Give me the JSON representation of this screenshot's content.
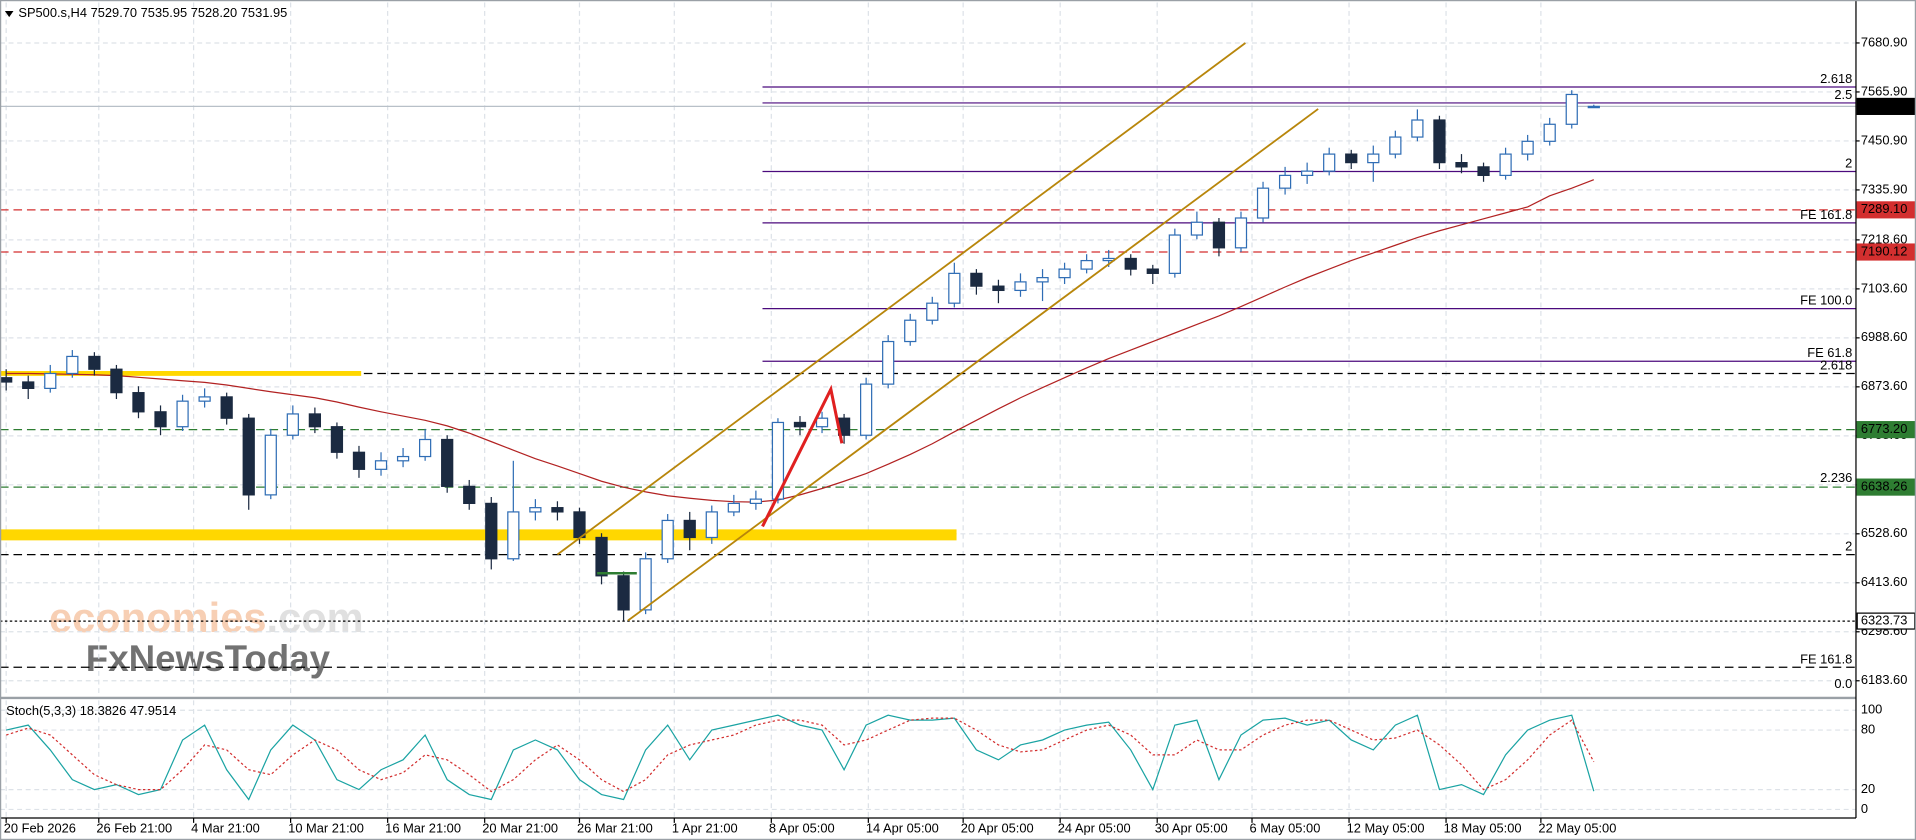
{
  "chart_data": [
    {
      "type": "candlestick",
      "title": "SP500.s,H4  7529.70 7535.95 7528.20 7531.95",
      "open": [
        6895,
        6885,
        6870,
        6905,
        6945,
        6915,
        6860,
        6815,
        6780,
        6840,
        6850,
        6800,
        6620,
        6760,
        6810,
        6780,
        6720,
        6680,
        6700,
        6710,
        6750,
        6640,
        6600,
        6470,
        6580,
        6590,
        6580,
        6520,
        6430,
        6350,
        6470,
        6560,
        6520,
        6580,
        6600,
        6610,
        6790,
        6780,
        6800,
        6760,
        6880,
        6980,
        7030,
        7070,
        7140,
        7110,
        7100,
        7120,
        7130,
        7150,
        7170,
        7175,
        7150,
        7140,
        7230,
        7260,
        7200,
        7270,
        7340,
        7370,
        7380,
        7420,
        7400,
        7420,
        7460,
        7500,
        7400,
        7390,
        7370,
        7420,
        7450,
        7490,
        7529.7
      ],
      "high": [
        6915,
        6900,
        6925,
        6960,
        6955,
        6925,
        6875,
        6830,
        6855,
        6870,
        6860,
        6810,
        6775,
        6830,
        6825,
        6790,
        6735,
        6720,
        6730,
        6775,
        6760,
        6655,
        6615,
        6700,
        6610,
        6605,
        6590,
        6530,
        6440,
        6485,
        6575,
        6580,
        6595,
        6620,
        6630,
        6800,
        6805,
        6815,
        6810,
        6895,
        6995,
        7045,
        7085,
        7165,
        7150,
        7125,
        7140,
        7150,
        7165,
        7185,
        7195,
        7185,
        7160,
        7245,
        7285,
        7270,
        7285,
        7355,
        7390,
        7400,
        7435,
        7430,
        7440,
        7475,
        7525,
        7510,
        7420,
        7400,
        7435,
        7465,
        7505,
        7570,
        7535.95
      ],
      "low": [
        6865,
        6845,
        6860,
        6895,
        6900,
        6845,
        6800,
        6760,
        6770,
        6825,
        6785,
        6585,
        6610,
        6750,
        6765,
        6705,
        6660,
        6665,
        6685,
        6700,
        6625,
        6585,
        6445,
        6465,
        6560,
        6560,
        6505,
        6410,
        6325,
        6340,
        6460,
        6490,
        6505,
        6570,
        6585,
        6600,
        6760,
        6765,
        6740,
        6750,
        6870,
        6970,
        7020,
        7060,
        7090,
        7070,
        7085,
        7075,
        7115,
        7140,
        7155,
        7135,
        7115,
        7130,
        7220,
        7180,
        7190,
        7260,
        7325,
        7350,
        7370,
        7385,
        7355,
        7410,
        7450,
        7385,
        7375,
        7355,
        7360,
        7405,
        7440,
        7480,
        7528.2
      ],
      "close": [
        6885,
        6870,
        6905,
        6945,
        6915,
        6860,
        6815,
        6780,
        6840,
        6850,
        6800,
        6620,
        6760,
        6810,
        6780,
        6720,
        6680,
        6700,
        6710,
        6750,
        6640,
        6600,
        6470,
        6580,
        6590,
        6580,
        6520,
        6430,
        6350,
        6470,
        6560,
        6520,
        6580,
        6600,
        6610,
        6790,
        6780,
        6800,
        6760,
        6880,
        6980,
        7030,
        7070,
        7140,
        7110,
        7100,
        7120,
        7130,
        7150,
        7170,
        7175,
        7150,
        7140,
        7230,
        7260,
        7200,
        7270,
        7340,
        7370,
        7380,
        7420,
        7400,
        7420,
        7460,
        7500,
        7400,
        7390,
        7370,
        7420,
        7450,
        7490,
        7560,
        7531.95
      ],
      "up_color": "#2f6db5",
      "down_color": "#1b2a41",
      "ma": {
        "color": "#b22222",
        "values": [
          6905,
          6905,
          6904,
          6903,
          6902,
          6900,
          6896,
          6892,
          6888,
          6884,
          6878,
          6870,
          6862,
          6855,
          6848,
          6838,
          6826,
          6815,
          6805,
          6795,
          6782,
          6765,
          6745,
          6725,
          6705,
          6688,
          6670,
          6652,
          6638,
          6627,
          6618,
          6612,
          6607,
          6604,
          6603,
          6608,
          6620,
          6635,
          6652,
          6670,
          6692,
          6715,
          6740,
          6768,
          6795,
          6822,
          6848,
          6872,
          6895,
          6918,
          6940,
          6960,
          6980,
          7000,
          7020,
          7040,
          7062,
          7085,
          7108,
          7130,
          7150,
          7170,
          7188,
          7206,
          7224,
          7240,
          7254,
          7268,
          7282,
          7296,
          7322,
          7340,
          7360
        ]
      },
      "xlim": [
        -0.28,
        83.89
      ],
      "xticks": [
        {
          "value": 0,
          "label": "20 Feb 2026"
        },
        {
          "value": 4.2,
          "label": "26 Feb 21:00"
        },
        {
          "value": 8.5,
          "label": "4 Mar 21:00"
        },
        {
          "value": 12.9,
          "label": "10 Mar 21:00"
        },
        {
          "value": 17.3,
          "label": "16 Mar 21:00"
        },
        {
          "value": 21.7,
          "label": "20 Mar 21:00"
        },
        {
          "value": 26,
          "label": "26 Mar 21:00"
        },
        {
          "value": 30.3,
          "label": "1 Apr 21:00"
        },
        {
          "value": 34.7,
          "label": "8 Apr 05:00"
        },
        {
          "value": 39.1,
          "label": "14 Apr 05:00"
        },
        {
          "value": 43.4,
          "label": "20 Apr 05:00"
        },
        {
          "value": 47.8,
          "label": "24 Apr 05:00"
        },
        {
          "value": 52.2,
          "label": "30 Apr 05:00"
        },
        {
          "value": 56.5,
          "label": "6 May 05:00"
        },
        {
          "value": 60.9,
          "label": "12 May 05:00"
        },
        {
          "value": 65.3,
          "label": "18 May 05:00"
        },
        {
          "value": 69.6,
          "label": "22 May 05:00"
        }
      ],
      "ylim": [
        6149,
        7776
      ],
      "yticks": [
        {
          "value": 7680.9,
          "label": "7680.90"
        },
        {
          "value": 7565.9,
          "label": "7565.90"
        },
        {
          "value": 7450.9,
          "label": "7450.90"
        },
        {
          "value": 7335.9,
          "label": "7335.90"
        },
        {
          "value": 7218.6,
          "label": "7218.60"
        },
        {
          "value": 7103.6,
          "label": "7103.60"
        },
        {
          "value": 6988.6,
          "label": "6988.60"
        },
        {
          "value": 6873.6,
          "label": "6873.60"
        },
        {
          "value": 6758.6,
          "label": "6758.60"
        },
        {
          "value": 6643.6,
          "label": "6643.60"
        },
        {
          "value": 6528.6,
          "label": "6528.60"
        },
        {
          "value": 6413.6,
          "label": "6413.60"
        },
        {
          "value": 6298.6,
          "label": "6298.60"
        },
        {
          "value": 6183.6,
          "label": "6183.60"
        }
      ],
      "grid": true,
      "levels": [
        {
          "value": 7577.5,
          "name": "2.618",
          "color": "#4b0a7d",
          "style": "solid",
          "x_start": 34.3
        },
        {
          "value": 7540.1,
          "name": "2.5",
          "color": "#4b0a7d",
          "style": "solid",
          "x_start": 34.3
        },
        {
          "value": 7531.95,
          "label": "7531.95",
          "color": "#b8c0c8",
          "style": "solid",
          "box": "#000000"
        },
        {
          "value": 7379.2,
          "name": "2",
          "color": "#4b0a7d",
          "style": "solid",
          "x_start": 34.3
        },
        {
          "value": 7289.1,
          "label": "7289.10",
          "color": "#d32f2f",
          "style": "dashed",
          "box": "#d32f2f"
        },
        {
          "value": 7258.5,
          "name": "FE 161.8",
          "color": "#4b0a7d",
          "style": "solid",
          "x_start": 34.3
        },
        {
          "value": 7190.12,
          "label": "7190.12",
          "color": "#d32f2f",
          "style": "dashed",
          "box": "#d32f2f"
        },
        {
          "value": 7057.3,
          "name": "FE 100.0",
          "color": "#4b0a7d",
          "style": "solid",
          "x_start": 34.3
        },
        {
          "value": 6933.8,
          "name": "FE 61.8",
          "color": "#4b0a7d",
          "style": "solid",
          "x_start": 34.3
        },
        {
          "value": 6905,
          "name": "2.618",
          "color": "#000000",
          "style": "dashed"
        },
        {
          "value": 6905,
          "color": "#ffd700",
          "style": "solid",
          "width": 4,
          "x_end": 16.1
        },
        {
          "value": 6773.2,
          "label": "6773.20",
          "color": "#2e7d32",
          "style": "dashed",
          "box": "#2e7d32"
        },
        {
          "value": 6641,
          "name": "2.236",
          "color": "#000000",
          "style": "none"
        },
        {
          "value": 6638.26,
          "label": "6638.26",
          "color": "#2e7d32",
          "style": "dashed",
          "box": "#2e7d32"
        },
        {
          "value": 6526,
          "color": "#ffd700",
          "style": "solid",
          "width": 9,
          "x_end": 43.1
        },
        {
          "value": 6479.8,
          "name": "2",
          "color": "#000000",
          "style": "dashed"
        },
        {
          "value": 6323.73,
          "label": "6323.73",
          "color": "#000000",
          "style": "dotted",
          "box": "#ffffff"
        },
        {
          "value": 6215.4,
          "name": "FE 161.8",
          "color": "#000000",
          "style": "dashed"
        },
        {
          "value": 6157,
          "name": "0.0",
          "color": "#000000",
          "style": "none"
        }
      ],
      "drawings": [
        {
          "color": "#b8860b",
          "width": 1.5,
          "points": [
            [
              25,
              6480
            ],
            [
              56.2,
              7680.9
            ]
          ]
        },
        {
          "color": "#b8860b",
          "width": 1.5,
          "points": [
            [
              28.2,
              6325
            ],
            [
              59.5,
              7526
            ]
          ]
        },
        {
          "color": "#e02020",
          "width": 2.5,
          "points": [
            [
              34.3,
              6546
            ],
            [
              37.4,
              6868
            ],
            [
              37.9,
              6741
            ]
          ]
        },
        {
          "color": "#2e7d32",
          "width": 2,
          "points": [
            [
              26.8,
              6436
            ],
            [
              28.6,
              6436
            ]
          ]
        }
      ],
      "watermarks": [
        "economies",
        ".com",
        "FxNewsToday"
      ]
    },
    {
      "type": "stochastic",
      "title": "Stoch(5,3,3) 18.3826 47.9514",
      "series": [
        {
          "color": "#1aa3a3",
          "values": [
            80,
            85,
            60,
            30,
            20,
            25,
            15,
            20,
            70,
            85,
            40,
            10,
            60,
            85,
            70,
            30,
            20,
            40,
            50,
            75,
            30,
            15,
            10,
            60,
            70,
            60,
            30,
            15,
            10,
            60,
            85,
            50,
            80,
            85,
            90,
            95,
            85,
            80,
            40,
            85,
            95,
            90,
            90,
            92,
            60,
            50,
            65,
            70,
            80,
            85,
            88,
            60,
            20,
            85,
            90,
            30,
            75,
            90,
            92,
            85,
            90,
            70,
            60,
            85,
            95,
            20,
            25,
            15,
            55,
            80,
            90,
            95,
            18.3826
          ]
        },
        {
          "color": "#d32f2f",
          "dash": true,
          "values": [
            75,
            82,
            75,
            55,
            35,
            25,
            20,
            20,
            40,
            65,
            60,
            40,
            35,
            55,
            70,
            60,
            40,
            30,
            37,
            55,
            50,
            35,
            18,
            30,
            50,
            65,
            50,
            30,
            18,
            30,
            55,
            65,
            70,
            75,
            85,
            90,
            90,
            85,
            65,
            70,
            80,
            90,
            92,
            92,
            80,
            65,
            58,
            60,
            70,
            80,
            85,
            75,
            55,
            55,
            70,
            60,
            60,
            75,
            85,
            90,
            90,
            80,
            70,
            72,
            80,
            65,
            45,
            20,
            30,
            50,
            75,
            90,
            47.9514
          ]
        }
      ],
      "ylim": [
        -8.6,
        109.9
      ],
      "yticks": [
        100,
        80,
        20,
        0
      ],
      "grid": true
    }
  ]
}
